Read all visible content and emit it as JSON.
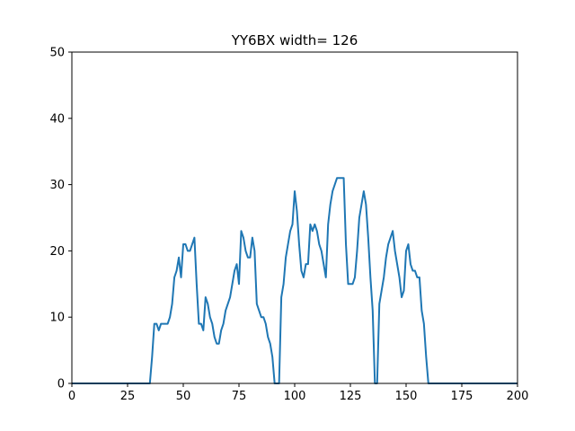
{
  "chart_data": {
    "type": "line",
    "title": "YY6BX width= 126",
    "xlabel": "",
    "ylabel": "",
    "xlim": [
      0,
      200
    ],
    "ylim": [
      0,
      50
    ],
    "xticks": [
      0,
      25,
      50,
      75,
      100,
      125,
      150,
      175,
      200
    ],
    "yticks": [
      0,
      10,
      20,
      30,
      40,
      50
    ],
    "grid": false,
    "line_color": "#1f77b4",
    "series": [
      {
        "x": [
          0,
          35,
          36,
          37,
          38,
          39,
          40,
          41,
          42,
          43,
          44,
          45,
          46,
          47,
          48,
          49,
          50,
          51,
          52,
          53,
          54,
          55,
          56,
          57,
          58,
          59,
          60,
          61,
          62,
          63,
          64,
          65,
          66,
          67,
          68,
          69,
          70,
          71,
          72,
          73,
          74,
          75,
          76,
          77,
          78,
          79,
          80,
          81,
          82,
          83,
          84,
          85,
          86,
          87,
          88,
          89,
          90,
          91,
          92,
          93,
          94,
          95,
          96,
          97,
          98,
          99,
          100,
          101,
          102,
          103,
          104,
          105,
          106,
          107,
          108,
          109,
          110,
          111,
          112,
          113,
          114,
          115,
          116,
          117,
          118,
          119,
          120,
          121,
          122,
          123,
          124,
          125,
          126,
          127,
          128,
          129,
          130,
          131,
          132,
          133,
          134,
          135,
          136,
          137,
          138,
          139,
          140,
          141,
          142,
          143,
          144,
          145,
          146,
          147,
          148,
          149,
          150,
          151,
          152,
          153,
          154,
          155,
          156,
          157,
          158,
          159,
          160,
          161,
          200
        ],
        "y": [
          0,
          0,
          4,
          9,
          9,
          8,
          9,
          9,
          9,
          9,
          10,
          12,
          16,
          17,
          19,
          16,
          21,
          21,
          20,
          20,
          21,
          22,
          15,
          9,
          9,
          8,
          13,
          12,
          10,
          9,
          7,
          6,
          6,
          8,
          9,
          11,
          12,
          13,
          15,
          17,
          18,
          15,
          23,
          22,
          20,
          19,
          19,
          22,
          20,
          12,
          11,
          10,
          10,
          9,
          7,
          6,
          4,
          0,
          0,
          0,
          13,
          15,
          19,
          21,
          23,
          24,
          29,
          26,
          21,
          17,
          16,
          18,
          18,
          24,
          23,
          24,
          23,
          21,
          20,
          18,
          16,
          24,
          27,
          29,
          30,
          31,
          31,
          31,
          31,
          21,
          15,
          15,
          15,
          16,
          20,
          25,
          27,
          29,
          27,
          22,
          16,
          11,
          0,
          0,
          12,
          14,
          16,
          19,
          21,
          22,
          23,
          20,
          18,
          16,
          13,
          14,
          20,
          21,
          18,
          17,
          17,
          16,
          16,
          11,
          9,
          4,
          0,
          0,
          0
        ]
      }
    ]
  }
}
